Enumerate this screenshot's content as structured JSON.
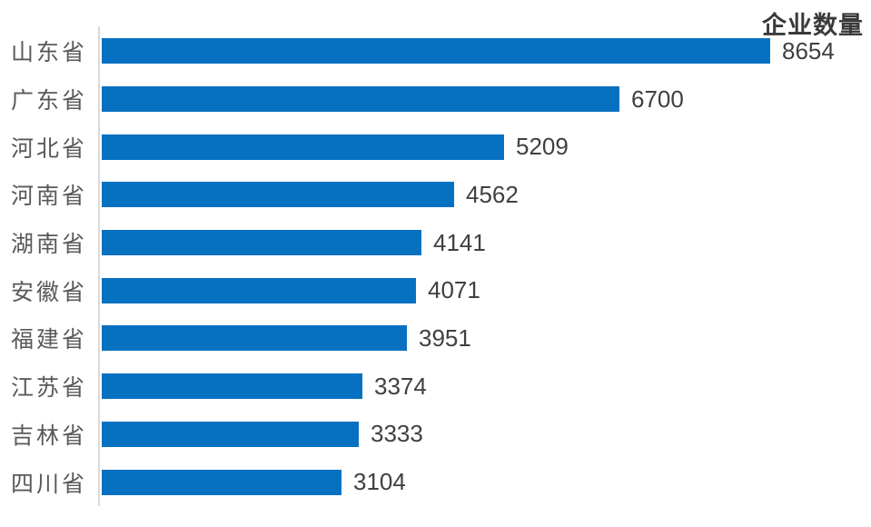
{
  "chart_data": {
    "type": "bar",
    "orientation": "horizontal",
    "title": "企业数量",
    "categories": [
      "山东省",
      "广东省",
      "河北省",
      "河南省",
      "湖南省",
      "安徽省",
      "福建省",
      "江苏省",
      "吉林省",
      "四川省"
    ],
    "values": [
      8654,
      6700,
      5209,
      4562,
      4141,
      4071,
      3951,
      3374,
      3333,
      3104
    ],
    "value_labels_shown": true,
    "xlabel": "",
    "ylabel": "",
    "xlim": [
      0,
      9000
    ],
    "grid": false,
    "legend_position": "none",
    "colors": {
      "bar": "#0771c1",
      "axis_line": "#d9d9d9",
      "category_label": "#595959",
      "value_label": "#404040",
      "title": "#3a3a3a"
    }
  }
}
